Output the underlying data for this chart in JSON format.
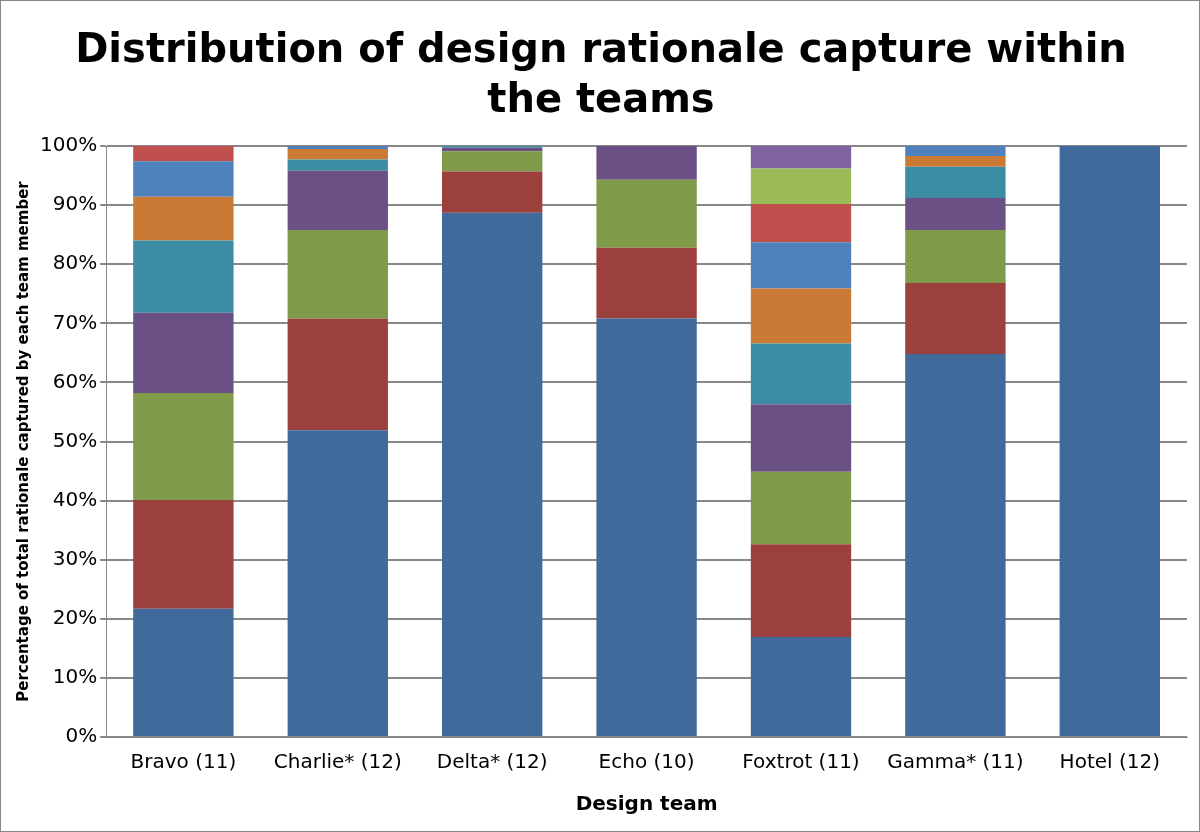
{
  "chart_data": {
    "type": "bar",
    "stacked": true,
    "title": "Distribution of design rationale capture within the teams",
    "xlabel": "Design team",
    "ylabel": "Percentage of total rationale captured by each team member",
    "categories": [
      "Bravo (11)",
      "Charlie* (12)",
      "Delta* (12)",
      "Echo (10)",
      "Foxtrot (11)",
      "Gamma* (11)",
      "Hotel (12)"
    ],
    "series": [
      {
        "color": "#3f6a9b",
        "values": [
          21.7,
          51.9,
          88.7,
          70.8,
          16.9,
          64.8,
          100
        ]
      },
      {
        "color": "#9c403e",
        "values": [
          18.4,
          18.9,
          7.0,
          12.0,
          15.7,
          12.0,
          null
        ]
      },
      {
        "color": "#7f9a48",
        "values": [
          18.1,
          15.0,
          3.4,
          11.5,
          12.3,
          9.0,
          null
        ]
      },
      {
        "color": "#6a5084",
        "values": [
          13.6,
          10.0,
          0.6,
          5.7,
          11.4,
          5.4,
          null
        ]
      },
      {
        "color": "#3c8ca4",
        "values": [
          12.2,
          1.9,
          0.3,
          null,
          10.3,
          5.3,
          null
        ]
      },
      {
        "color": "#cb7a36",
        "values": [
          7.4,
          1.8,
          null,
          null,
          9.3,
          1.8,
          null
        ]
      },
      {
        "color": "#4f81bd",
        "values": [
          6.0,
          0.5,
          null,
          null,
          7.8,
          1.7,
          null
        ]
      },
      {
        "color": "#c0504d",
        "values": [
          2.6,
          null,
          null,
          null,
          6.5,
          null,
          null
        ]
      },
      {
        "color": "#9bbb59",
        "values": [
          null,
          null,
          null,
          null,
          6.0,
          null,
          null
        ]
      },
      {
        "color": "#8064a2",
        "values": [
          null,
          null,
          null,
          null,
          3.8,
          null,
          null
        ]
      }
    ],
    "ylim": [
      0,
      100
    ],
    "yticks": [
      {
        "value": 0,
        "label": "0%"
      },
      {
        "value": 10,
        "label": "10%"
      },
      {
        "value": 20,
        "label": "20%"
      },
      {
        "value": 30,
        "label": "30%"
      },
      {
        "value": 40,
        "label": "40%"
      },
      {
        "value": 50,
        "label": "50%"
      },
      {
        "value": 60,
        "label": "60%"
      },
      {
        "value": 70,
        "label": "70%"
      },
      {
        "value": 80,
        "label": "80%"
      },
      {
        "value": 90,
        "label": "90%"
      },
      {
        "value": 100,
        "label": "100%"
      }
    ],
    "grid": "y",
    "legend": false
  }
}
